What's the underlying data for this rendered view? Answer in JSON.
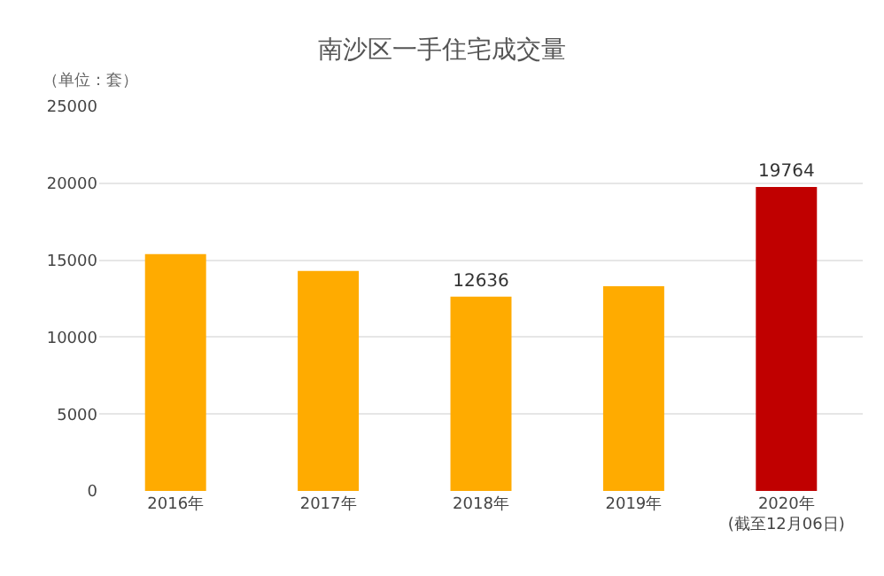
{
  "chart_data": {
    "type": "bar",
    "title": "南沙区一手住宅成交量",
    "ylabel": "（单位：套）",
    "categories": [
      "2016年",
      "2017年",
      "2018年",
      "2019年",
      "2020年\n(截至12月06日)"
    ],
    "values": [
      15400,
      14300,
      12636,
      13300,
      19764
    ],
    "colors": [
      "#ffab00",
      "#ffab00",
      "#ffab00",
      "#ffab00",
      "#c00000"
    ],
    "value_labels": [
      null,
      null,
      "12636",
      null,
      "19764"
    ],
    "ylim": [
      0,
      25000
    ],
    "yticks": [
      0,
      5000,
      10000,
      15000,
      20000,
      25000
    ],
    "grid": "y"
  }
}
